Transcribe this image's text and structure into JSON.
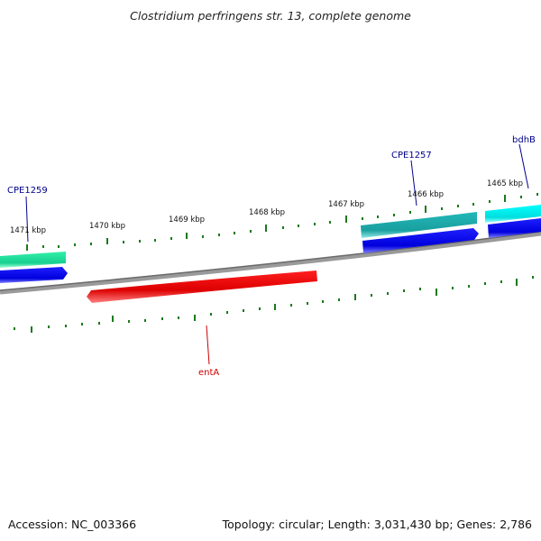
{
  "title": "Clostridium perfringens str. 13, complete genome",
  "footer": {
    "accession": "Accession: NC_003366",
    "summary": "Topology: circular; Length: 3,031,430 bp; Genes: 2,786"
  },
  "scale_labels": [
    "1465 kbp",
    "1466 kbp",
    "1467 kbp",
    "1468 kbp",
    "1469 kbp",
    "1470 kbp",
    "1471 kbp"
  ],
  "genes": [
    {
      "name": "bdhB",
      "color": "#00008b"
    },
    {
      "name": "CPE1257",
      "color": "#00008b"
    },
    {
      "name": "CPE1259",
      "color": "#00008b"
    },
    {
      "name": "entA",
      "color": "#dd0000"
    }
  ],
  "colors": {
    "backbone": "#808080",
    "tick": "#1a7a1a",
    "cds_forward": "#0000ee",
    "gene_cyan": "#00e0e0",
    "gene_teal": "#20b0b0",
    "gene_green": "#20e09a",
    "gene_red": "#ee0000"
  }
}
